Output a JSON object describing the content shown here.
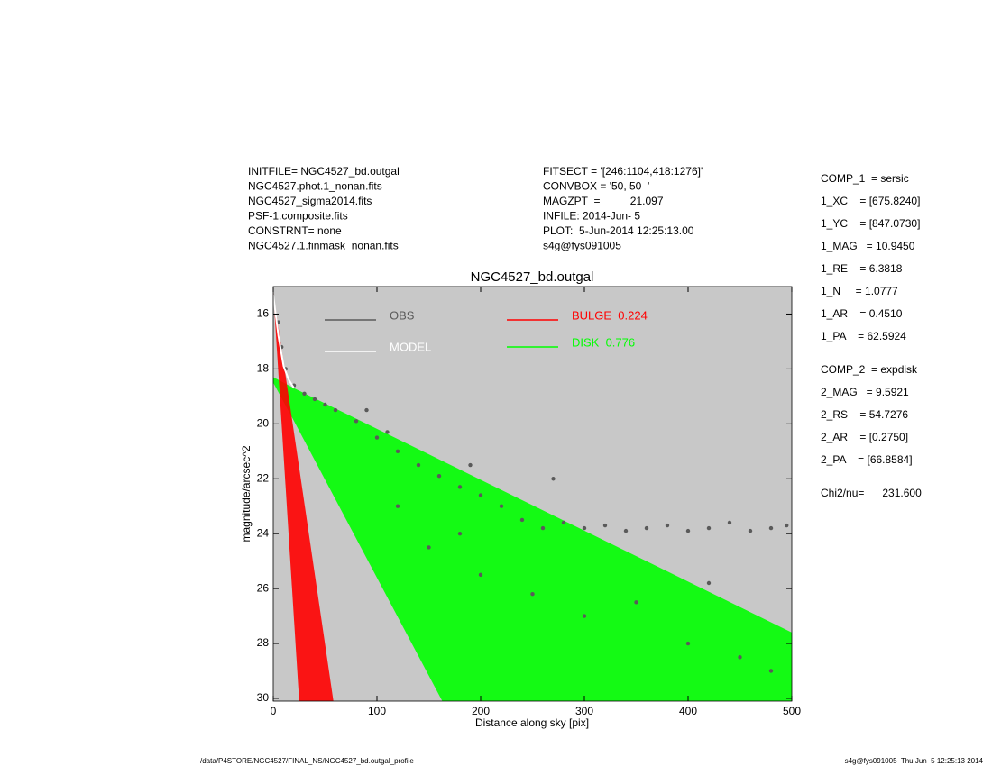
{
  "chart_data": {
    "type": "scatter",
    "title": "NGC4527_bd.outgal",
    "x_label": "Distance along sky [pix]",
    "y_label": "magnitude/arcsec^2",
    "xlim": [
      0,
      500
    ],
    "ylim": [
      30.1,
      15
    ],
    "xticks": [
      0,
      100,
      200,
      300,
      400,
      500
    ],
    "yticks": [
      16,
      18,
      20,
      22,
      24,
      26,
      28,
      30
    ],
    "legend": true,
    "background": "#c8c8c8",
    "series": [
      {
        "name": "OBS",
        "color": "#5a5a5a",
        "mark": "points",
        "x": [
          5,
          8,
          12,
          20,
          30,
          40,
          50,
          60,
          80,
          90,
          100,
          110,
          120,
          140,
          160,
          180,
          190,
          200,
          220,
          240,
          260,
          270,
          280,
          300,
          320,
          340,
          360,
          380,
          400,
          420,
          440,
          460,
          480,
          495,
          150,
          200,
          250,
          300,
          350,
          400,
          450,
          420,
          480,
          120,
          180
        ],
        "values": [
          16.3,
          17.2,
          18.0,
          18.6,
          18.9,
          19.1,
          19.3,
          19.5,
          19.9,
          19.5,
          20.5,
          20.3,
          21.0,
          21.5,
          21.9,
          22.3,
          21.5,
          22.6,
          23.0,
          23.5,
          23.8,
          22.0,
          23.6,
          23.8,
          23.7,
          23.9,
          23.8,
          23.7,
          23.9,
          23.8,
          23.6,
          23.9,
          23.8,
          23.7,
          24.5,
          25.5,
          26.2,
          27.0,
          26.5,
          28.0,
          28.5,
          25.8,
          29.0,
          23.0,
          24.0
        ]
      },
      {
        "name": "MODEL",
        "color": "#ffffff",
        "mark": "line",
        "x": [
          0,
          5,
          10,
          15,
          20
        ],
        "values": [
          15.3,
          16.8,
          17.9,
          18.4,
          18.7
        ]
      },
      {
        "name": "BULGE  0.224",
        "color": "#ff0000",
        "mark": "band",
        "x": [
          0,
          25,
          58
        ],
        "values": [
          15.2,
          21.6,
          30.1
        ],
        "lower": [
          15.2,
          30.1,
          30.1
        ]
      },
      {
        "name": "DISK  0.776",
        "color": "#00ff00",
        "mark": "band",
        "x": [
          0,
          20,
          163,
          500
        ],
        "values": [
          18.3,
          18.7,
          21.35,
          27.6
        ],
        "lower": [
          18.5,
          19.9,
          30.1,
          30.1
        ]
      }
    ]
  },
  "header_left": [
    "INITFILE= NGC4527_bd.outgal",
    "NGC4527.phot.1_nonan.fits",
    "NGC4527_sigma2014.fits",
    "PSF-1.composite.fits",
    "CONSTRNT= none",
    "NGC4527.1.finmask_nonan.fits"
  ],
  "header_middle": [
    "FITSECT = '[246:1104,418:1276]'",
    "CONVBOX = '50, 50  '",
    "MAGZPT  =          21.097",
    "INFILE: 2014-Jun- 5",
    "PLOT:  5-Jun-2014 12:25:13.00",
    "s4g@fys091005"
  ],
  "parameters": [
    "COMP_1  = sersic",
    "1_XC    = [675.8240]",
    "1_YC    = [847.0730]",
    "1_MAG   = 10.9450",
    "1_RE    = 6.3818",
    "1_N     = 1.0777",
    "1_AR    = 0.4510",
    "1_PA    = 62.5924",
    "COMP_2  = expdisk",
    "2_MAG   = 9.5921",
    "2_RS    = 54.7276",
    "2_AR    = [0.2750]",
    "2_PA    = [66.8584]",
    "Chi2/nu=      231.600"
  ],
  "footer_left": "/data/P4STORE/NGC4527/FINAL_NS/NGC4527_bd.outgal_profile",
  "footer_right": "s4g@fys091005  Thu Jun  5 12:25:13 2014"
}
